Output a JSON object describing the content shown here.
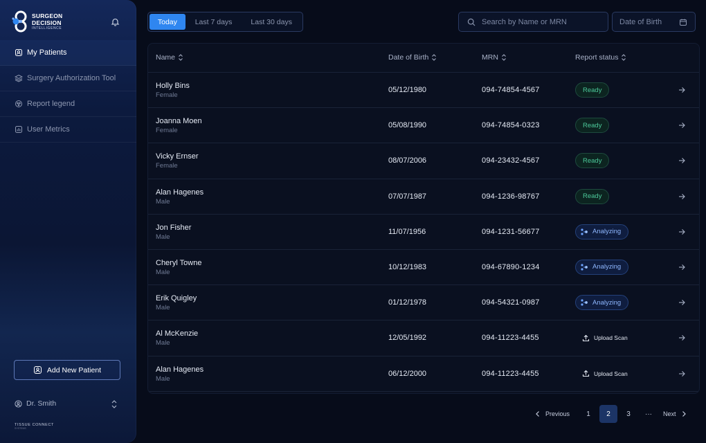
{
  "app": {
    "logo_line1": "SURGEON",
    "logo_line2": "DECISION",
    "logo_line3": "INTELLIGENCE"
  },
  "sidebar": {
    "items": [
      {
        "label": "My Patients",
        "icon": "patients-icon",
        "active": true
      },
      {
        "label": "Surgery Authorization Tool",
        "icon": "layers-icon",
        "active": false
      },
      {
        "label": "Report legend",
        "icon": "legend-icon",
        "active": false
      },
      {
        "label": "User Metrics",
        "icon": "chart-icon",
        "active": false
      }
    ],
    "add_patient_label": "Add New Patient",
    "user_name": "Dr. Smith",
    "footer_brand": "TISSUE CONNECT",
    "footer_sub": "SYSTEMS"
  },
  "filters": {
    "tabs": [
      "Today",
      "Last 7 days",
      "Last 30 days"
    ],
    "active_tab": "Today",
    "search_placeholder": "Search by Name or MRN",
    "dob_placeholder": "Date of Birth"
  },
  "table": {
    "columns": [
      "Name",
      "Date of Birth",
      "MRN",
      "Report status"
    ],
    "rows": [
      {
        "name": "Holly Bins",
        "gender": "Female",
        "dob": "05/12/1980",
        "mrn": "094-74854-4567",
        "status": "Ready"
      },
      {
        "name": "Joanna Moen",
        "gender": "Female",
        "dob": "05/08/1990",
        "mrn": "094-74854-0323",
        "status": "Ready"
      },
      {
        "name": "Vicky Ernser",
        "gender": "Female",
        "dob": "08/07/2006",
        "mrn": "094-23432-4567",
        "status": "Ready"
      },
      {
        "name": "Alan Hagenes",
        "gender": "Male",
        "dob": "07/07/1987",
        "mrn": "094-1236-98767",
        "status": "Ready"
      },
      {
        "name": "Jon Fisher",
        "gender": "Male",
        "dob": "11/07/1956",
        "mrn": "094-1231-56677",
        "status": "Analyzing"
      },
      {
        "name": "Cheryl Towne",
        "gender": "Male",
        "dob": "10/12/1983",
        "mrn": "094-67890-1234",
        "status": "Analyzing"
      },
      {
        "name": "Erik Quigley",
        "gender": "Male",
        "dob": "01/12/1978",
        "mrn": "094-54321-0987",
        "status": "Analyzing"
      },
      {
        "name": "Al McKenzie",
        "gender": "Male",
        "dob": "12/05/1992",
        "mrn": "094-11223-4455",
        "status": "Upload Scan"
      },
      {
        "name": "Alan Hagenes",
        "gender": "Male",
        "dob": "06/12/2000",
        "mrn": "094-11223-4455",
        "status": "Upload Scan"
      }
    ]
  },
  "pagination": {
    "previous_label": "Previous",
    "next_label": "Next",
    "pages": [
      "1",
      "2",
      "3",
      "···"
    ],
    "current_page": "2"
  },
  "colors": {
    "accent": "#2f86f0",
    "ready": "#4cc99a",
    "analyzing": "#8fb8ff",
    "background": "#070c1a"
  }
}
